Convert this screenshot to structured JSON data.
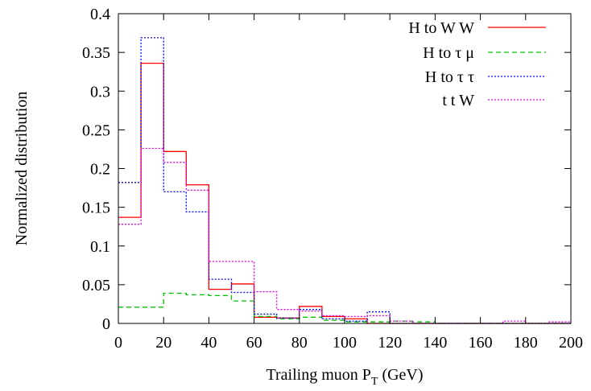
{
  "chart_data": {
    "type": "line",
    "style": "histogram-step",
    "xlabel": "Trailing muon P",
    "xlabel_subscript": "T",
    "xlabel_unit": " (GeV)",
    "ylabel": "Normalized distribution",
    "xlim": [
      0,
      200
    ],
    "ylim": [
      0,
      0.4
    ],
    "xticks": [
      0,
      20,
      40,
      60,
      80,
      100,
      120,
      140,
      160,
      180,
      200
    ],
    "xtick_labels": [
      "0",
      "20",
      "40",
      "60",
      "80",
      "100",
      "120",
      "140",
      "160",
      "180",
      "200"
    ],
    "yticks": [
      0,
      0.05,
      0.1,
      0.15,
      0.2,
      0.25,
      0.3,
      0.35,
      0.4
    ],
    "ytick_labels": [
      "0",
      "0.05",
      "0.1",
      "0.15",
      "0.2",
      "0.25",
      "0.3",
      "0.35",
      "0.4"
    ],
    "grid": false,
    "legend_position": "top-right",
    "bin_edges": [
      0,
      10,
      20,
      30,
      40,
      50,
      60,
      70,
      80,
      90,
      100,
      110,
      120,
      130,
      140,
      150,
      160,
      170,
      180,
      190,
      200
    ],
    "series": [
      {
        "name": "H to W W",
        "color": "#ff0000",
        "dash": "solid",
        "values": [
          0.137,
          0.336,
          0.222,
          0.179,
          0.044,
          0.051,
          0.008,
          0.007,
          0.022,
          0.009,
          0.006,
          0.0,
          0.0,
          0.0,
          0.0,
          0.0,
          0.0,
          0.0,
          0.0,
          0.0
        ]
      },
      {
        "name": "H to τ μ",
        "color": "#00c000",
        "dash": "dashed",
        "values": [
          0.021,
          0.021,
          0.039,
          0.037,
          0.036,
          0.029,
          0.009,
          0.006,
          0.008,
          0.004,
          0.002,
          0.002,
          0.003,
          0.002,
          0.0,
          0.0,
          0.0,
          0.0,
          0.0,
          0.0
        ]
      },
      {
        "name": "H to τ τ",
        "color": "#0000ff",
        "dash": "dotted",
        "values": [
          0.182,
          0.369,
          0.17,
          0.144,
          0.057,
          0.04,
          0.012,
          0.007,
          0.018,
          0.006,
          0.003,
          0.015,
          0.0,
          0.0,
          0.0,
          0.0,
          0.0,
          0.0,
          0.0,
          0.0
        ]
      },
      {
        "name": "t t W",
        "color": "#e000e0",
        "dash": "dotted",
        "values": [
          0.128,
          0.226,
          0.208,
          0.172,
          0.08,
          0.08,
          0.041,
          0.018,
          0.016,
          0.01,
          0.009,
          0.01,
          0.003,
          0.0,
          0.0,
          0.0,
          0.0,
          0.003,
          0.0,
          0.002
        ]
      }
    ]
  }
}
